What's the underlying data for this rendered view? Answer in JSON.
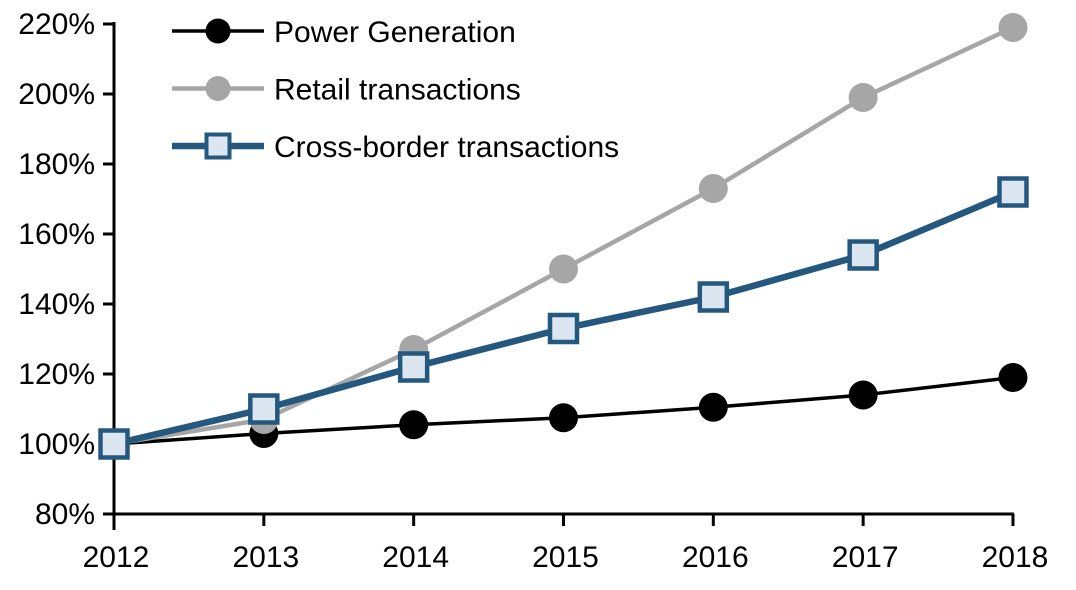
{
  "chart_data": {
    "type": "line",
    "title": "",
    "x_labels": [
      "2012",
      "2013",
      "2014",
      "2015",
      "2016",
      "2017",
      "2018"
    ],
    "x_values": [
      2012,
      2013,
      2014,
      2015,
      2016,
      2017,
      2018
    ],
    "ylim": [
      80,
      220
    ],
    "ytick_values": [
      80,
      100,
      120,
      140,
      160,
      180,
      200,
      220
    ],
    "ytick_labels": [
      "80%",
      "100%",
      "120%",
      "140%",
      "160%",
      "180%",
      "200%",
      "220%"
    ],
    "grid": false,
    "legend_position": "top-left",
    "axis_color": "#000000",
    "background_color": "#FFFFFF",
    "series": [
      {
        "name": "Power Generation",
        "color": "#000000",
        "marker": "circle",
        "marker_fill": "#000000",
        "marker_stroke": "#000000",
        "values": [
          100,
          103,
          105.5,
          107.5,
          110.5,
          114,
          119
        ]
      },
      {
        "name": "Retail transactions",
        "color": "#A6A6A6",
        "marker": "circle",
        "marker_fill": "#A6A6A6",
        "marker_stroke": "#A6A6A6",
        "values": [
          100,
          107,
          127,
          150,
          173,
          199,
          219
        ]
      },
      {
        "name": "Cross-border transactions",
        "color": "#25587E",
        "marker": "square",
        "marker_fill": "#DCE6F1",
        "marker_stroke": "#25587E",
        "values": [
          100,
          110,
          122,
          133,
          142,
          154,
          172
        ]
      }
    ]
  }
}
